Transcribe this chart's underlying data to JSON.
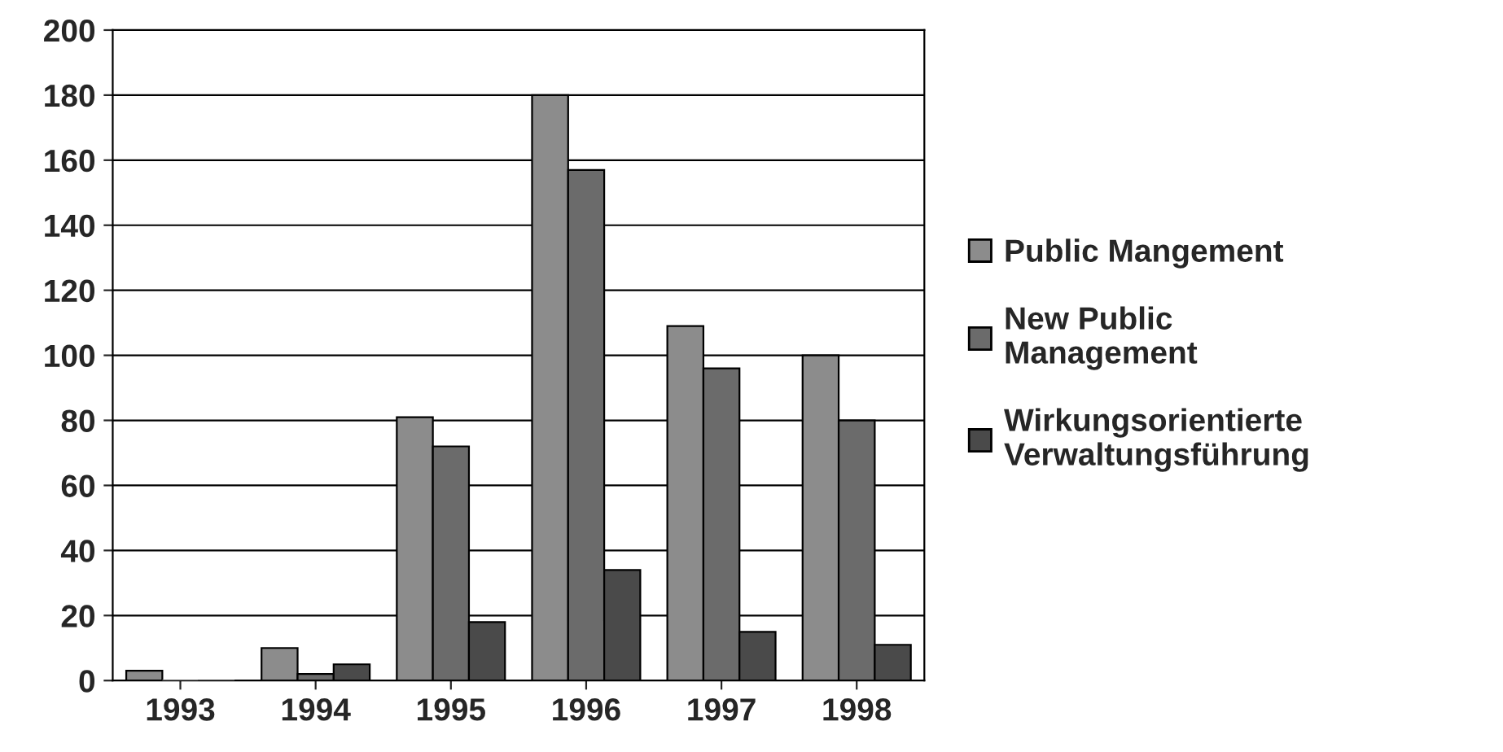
{
  "chart_data": {
    "type": "bar",
    "categories": [
      "1993",
      "1994",
      "1995",
      "1996",
      "1997",
      "1998"
    ],
    "series": [
      {
        "name": "Public Mangement",
        "color": "#8c8c8c",
        "values": [
          3,
          10,
          81,
          180,
          109,
          100
        ]
      },
      {
        "name": "New Public\nManagement",
        "color": "#6b6b6b",
        "values": [
          0,
          2,
          72,
          157,
          96,
          80
        ]
      },
      {
        "name": "Wirkungsorientierte\nVerwaltungsführung",
        "color": "#4a4a4a",
        "values": [
          0,
          5,
          18,
          34,
          15,
          11
        ]
      }
    ],
    "ylim": [
      0,
      200
    ],
    "yticks": [
      0,
      20,
      40,
      60,
      80,
      100,
      120,
      140,
      160,
      180,
      200
    ],
    "grid": "y",
    "legend": "right"
  }
}
